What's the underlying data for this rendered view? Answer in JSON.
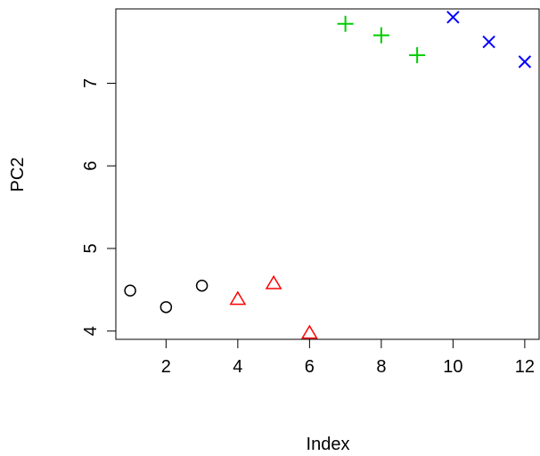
{
  "chart_data": {
    "type": "scatter",
    "xlabel": "Index",
    "ylabel": "PC2",
    "xlim": [
      0.6,
      12.4
    ],
    "ylim": [
      3.9,
      7.9
    ],
    "x_ticks": [
      2,
      4,
      6,
      8,
      10,
      12
    ],
    "y_ticks": [
      4,
      5,
      6,
      7
    ],
    "grid": false,
    "series": [
      {
        "color": "#000000",
        "marker": "circle",
        "x": [
          1,
          2,
          3
        ],
        "y": [
          4.49,
          4.29,
          4.55
        ]
      },
      {
        "color": "#ff0000",
        "marker": "triangle",
        "x": [
          4,
          5,
          6
        ],
        "y": [
          4.38,
          4.57,
          3.97
        ]
      },
      {
        "color": "#00cd00",
        "marker": "plus",
        "x": [
          7,
          8,
          9
        ],
        "y": [
          7.72,
          7.58,
          7.34
        ]
      },
      {
        "color": "#0000ff",
        "marker": "cross",
        "x": [
          10,
          11,
          12
        ],
        "y": [
          7.8,
          7.5,
          7.26
        ]
      }
    ]
  }
}
